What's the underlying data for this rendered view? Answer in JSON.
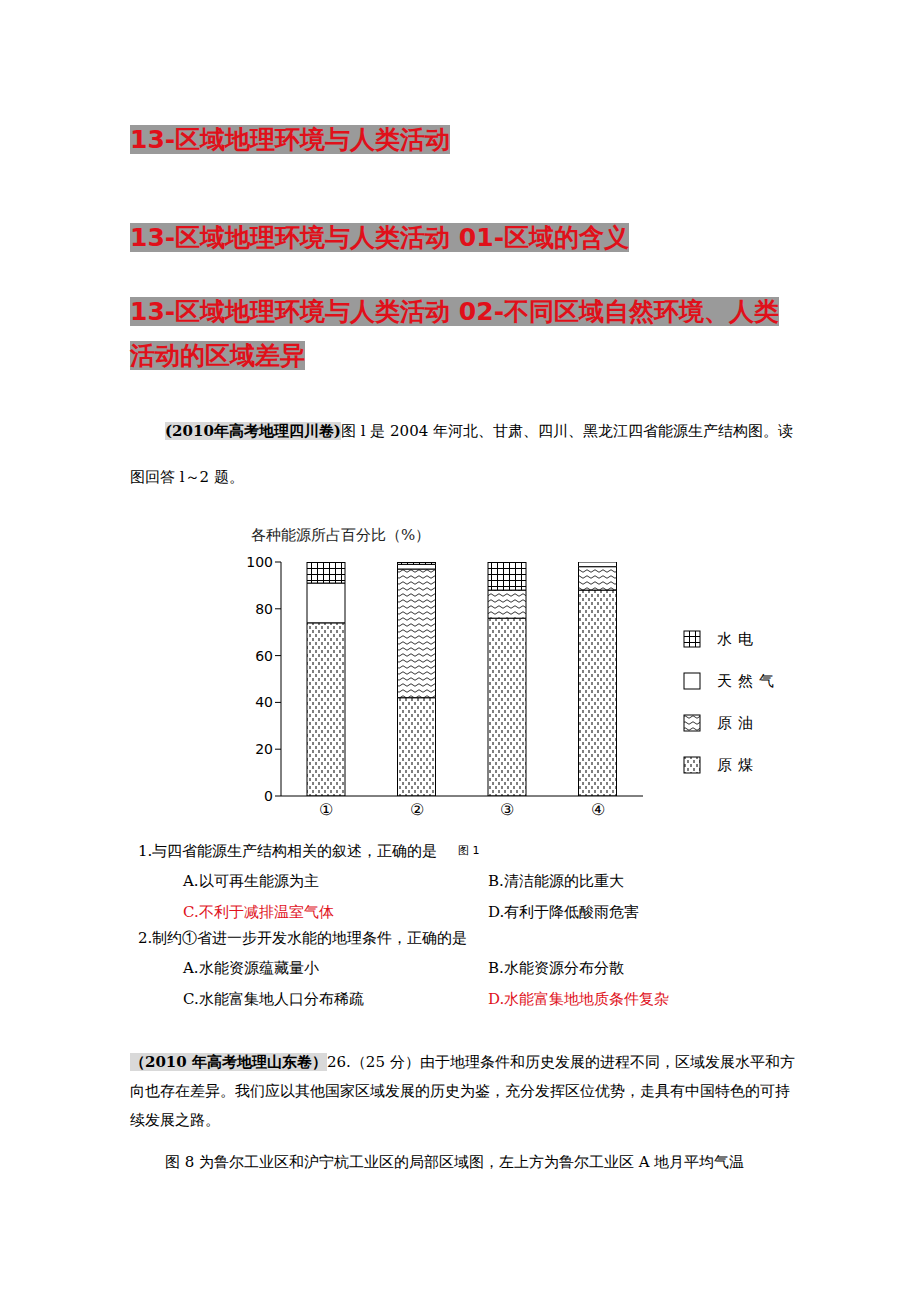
{
  "headings": [
    "13-区域地理环境与人类活动",
    "13-区域地理环境与人类活动  01-区域的含义",
    "13-区域地理环境与人类活动  02-不同区域自然环境、人类活动的区域差异"
  ],
  "section1": {
    "source": "(2010年高考地理四川卷)",
    "text": "图 l 是 2004 年河北、甘肃、四川、黑龙江四省能源生产结构图。读图回答 l～2 题。",
    "figure_label": "图 1",
    "questions": [
      {
        "stem": "1.与四省能源生产结构相关的叙述，正确的是",
        "options": [
          "A.以可再生能源为主",
          "B.清洁能源的比重大",
          "C.不利于减排温室气体",
          "D.有利于降低酸雨危害"
        ],
        "answer": "C"
      },
      {
        "stem": "2.制约①省进一步开发水能的地理条件，正确的是",
        "options": [
          "A.水能资源蕴藏量小",
          "B.水能资源分布分散",
          "C.水能富集地人口分布稀疏",
          "D.水能富集地地质条件复杂"
        ],
        "answer": "D"
      }
    ]
  },
  "section2": {
    "source": "（2010 年高考地理山东卷）",
    "text": "26.（25 分）由于地理条件和历史发展的进程不同，区域发展水平和方向也存在差异。我们应以其他国家区域发展的历史为鉴，充分发挥区位优势，走具有中国特色的可持续发展之路。",
    "text2": "图 8 为鲁尔工业区和沪宁杭工业区的局部区域图，左上方为鲁尔工业区 A 地月平均气温"
  },
  "chart_data": {
    "type": "bar",
    "stacked": true,
    "y_label": "各种能源所占百分比（%）",
    "categories": [
      "①",
      "②",
      "③",
      "④"
    ],
    "series": [
      {
        "name": "原煤",
        "color": "#ffffff",
        "values": [
          74,
          42,
          76,
          88
        ]
      },
      {
        "name": "原油",
        "color": "#ffffff",
        "values": [
          0,
          55,
          12,
          10
        ]
      },
      {
        "name": "天然气",
        "color": "#ffffff",
        "values": [
          17,
          2,
          0,
          2
        ]
      },
      {
        "name": "水电",
        "color": "#ffffff",
        "values": [
          9,
          1,
          12,
          0
        ]
      }
    ],
    "ylim": [
      0,
      100
    ],
    "yticks": [
      0,
      20,
      40,
      60,
      80,
      100
    ],
    "grid": false,
    "legend": "right"
  }
}
